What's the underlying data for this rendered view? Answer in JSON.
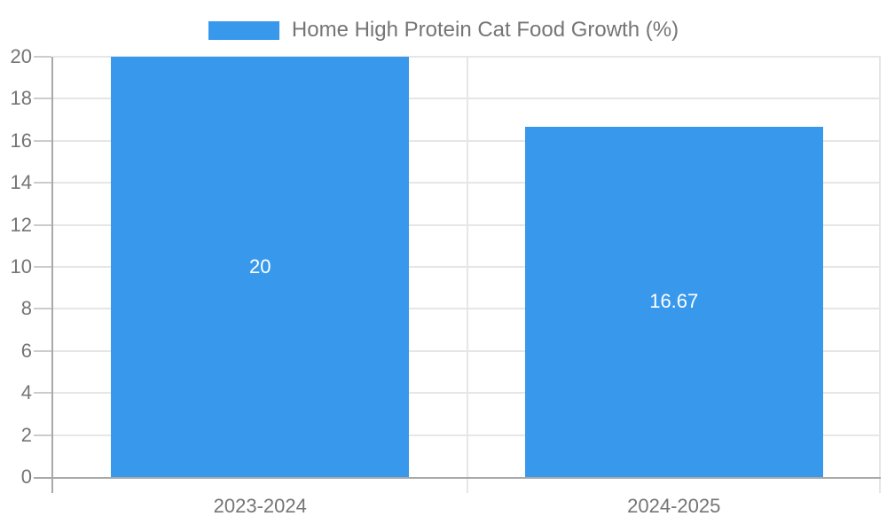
{
  "legend": {
    "label": "Home High Protein Cat Food Growth (%)"
  },
  "chart_data": {
    "type": "bar",
    "title": "",
    "categories": [
      "2023-2024",
      "2024-2025"
    ],
    "series": [
      {
        "name": "Home High Protein Cat Food Growth (%)",
        "values": [
          20,
          16.67
        ]
      }
    ],
    "value_labels": [
      "20",
      "16.67"
    ],
    "xlabel": "",
    "ylabel": "",
    "ylim": [
      0,
      20
    ],
    "ytick_step": 2,
    "ytick_labels": [
      "0",
      "2",
      "4",
      "6",
      "8",
      "10",
      "12",
      "14",
      "16",
      "18",
      "20"
    ],
    "grid": true,
    "legend_position": "top-center",
    "bar_label_position": "center"
  },
  "colors": {
    "bar": "#3899ec",
    "text": "#757575",
    "grid": "#e6e6e6",
    "tick": "#cccccc",
    "axis": "#a9a9a9",
    "bar_label": "#ffffff",
    "background": "#ffffff"
  }
}
